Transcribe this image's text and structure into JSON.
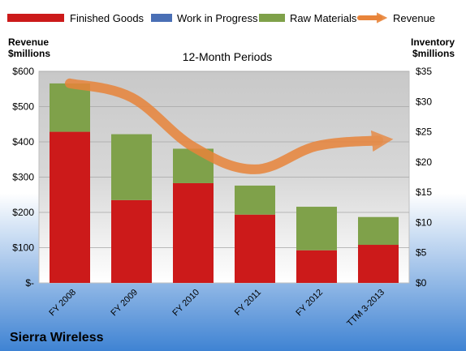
{
  "colors": {
    "finished_goods": "#CC1A1A",
    "work_in_progress": "#4A6FB5",
    "raw_materials": "#7FA14A",
    "revenue": "#E8843A",
    "background_top": "#FFFFFF",
    "background_bottom": "#3F83D3",
    "plot_area": "#D9D9D9"
  },
  "company_name": "Sierra Wireless",
  "chart_data": {
    "type": "bar",
    "stacked": true,
    "title": "12-Month Periods",
    "left_axis_title": [
      "Revenue",
      "$millions"
    ],
    "right_axis_title": [
      "Inventory",
      "$millions"
    ],
    "categories": [
      "FY 2008",
      "FY 2009",
      "FY 2010",
      "FY 2011",
      "FY 2012",
      "TTM 3-2013"
    ],
    "left_axis": {
      "ylim": [
        0,
        600
      ],
      "ticks": [
        0,
        100,
        200,
        300,
        400,
        500,
        600
      ],
      "tick_labels": [
        "$-",
        "$100",
        "$200",
        "$300",
        "$400",
        "$500",
        "$600"
      ]
    },
    "right_axis": {
      "ylim": [
        0,
        35
      ],
      "ticks": [
        0,
        5,
        10,
        15,
        20,
        25,
        30,
        35
      ],
      "tick_labels": [
        "$0",
        "$5",
        "$10",
        "$15",
        "$20",
        "$25",
        "$30",
        "$35"
      ]
    },
    "legend": {
      "placement": "top",
      "entries": [
        "Finished Goods",
        "Work in Progress",
        "Raw Materials",
        "Revenue"
      ]
    },
    "series": [
      {
        "name": "Finished Goods",
        "kind": "bar",
        "axis": "right",
        "values": [
          25.0,
          13.7,
          16.5,
          11.3,
          5.4,
          6.3
        ]
      },
      {
        "name": "Work in Progress",
        "kind": "bar",
        "axis": "right",
        "values": [
          0,
          0,
          0,
          0,
          0,
          0
        ]
      },
      {
        "name": "Raw Materials",
        "kind": "bar",
        "axis": "right",
        "values": [
          8.0,
          10.9,
          5.7,
          4.8,
          7.2,
          4.6
        ]
      },
      {
        "name": "Revenue",
        "kind": "line",
        "axis": "left",
        "values": [
          566,
          526,
          386,
          322,
          388,
          404
        ]
      }
    ],
    "grid": true
  }
}
